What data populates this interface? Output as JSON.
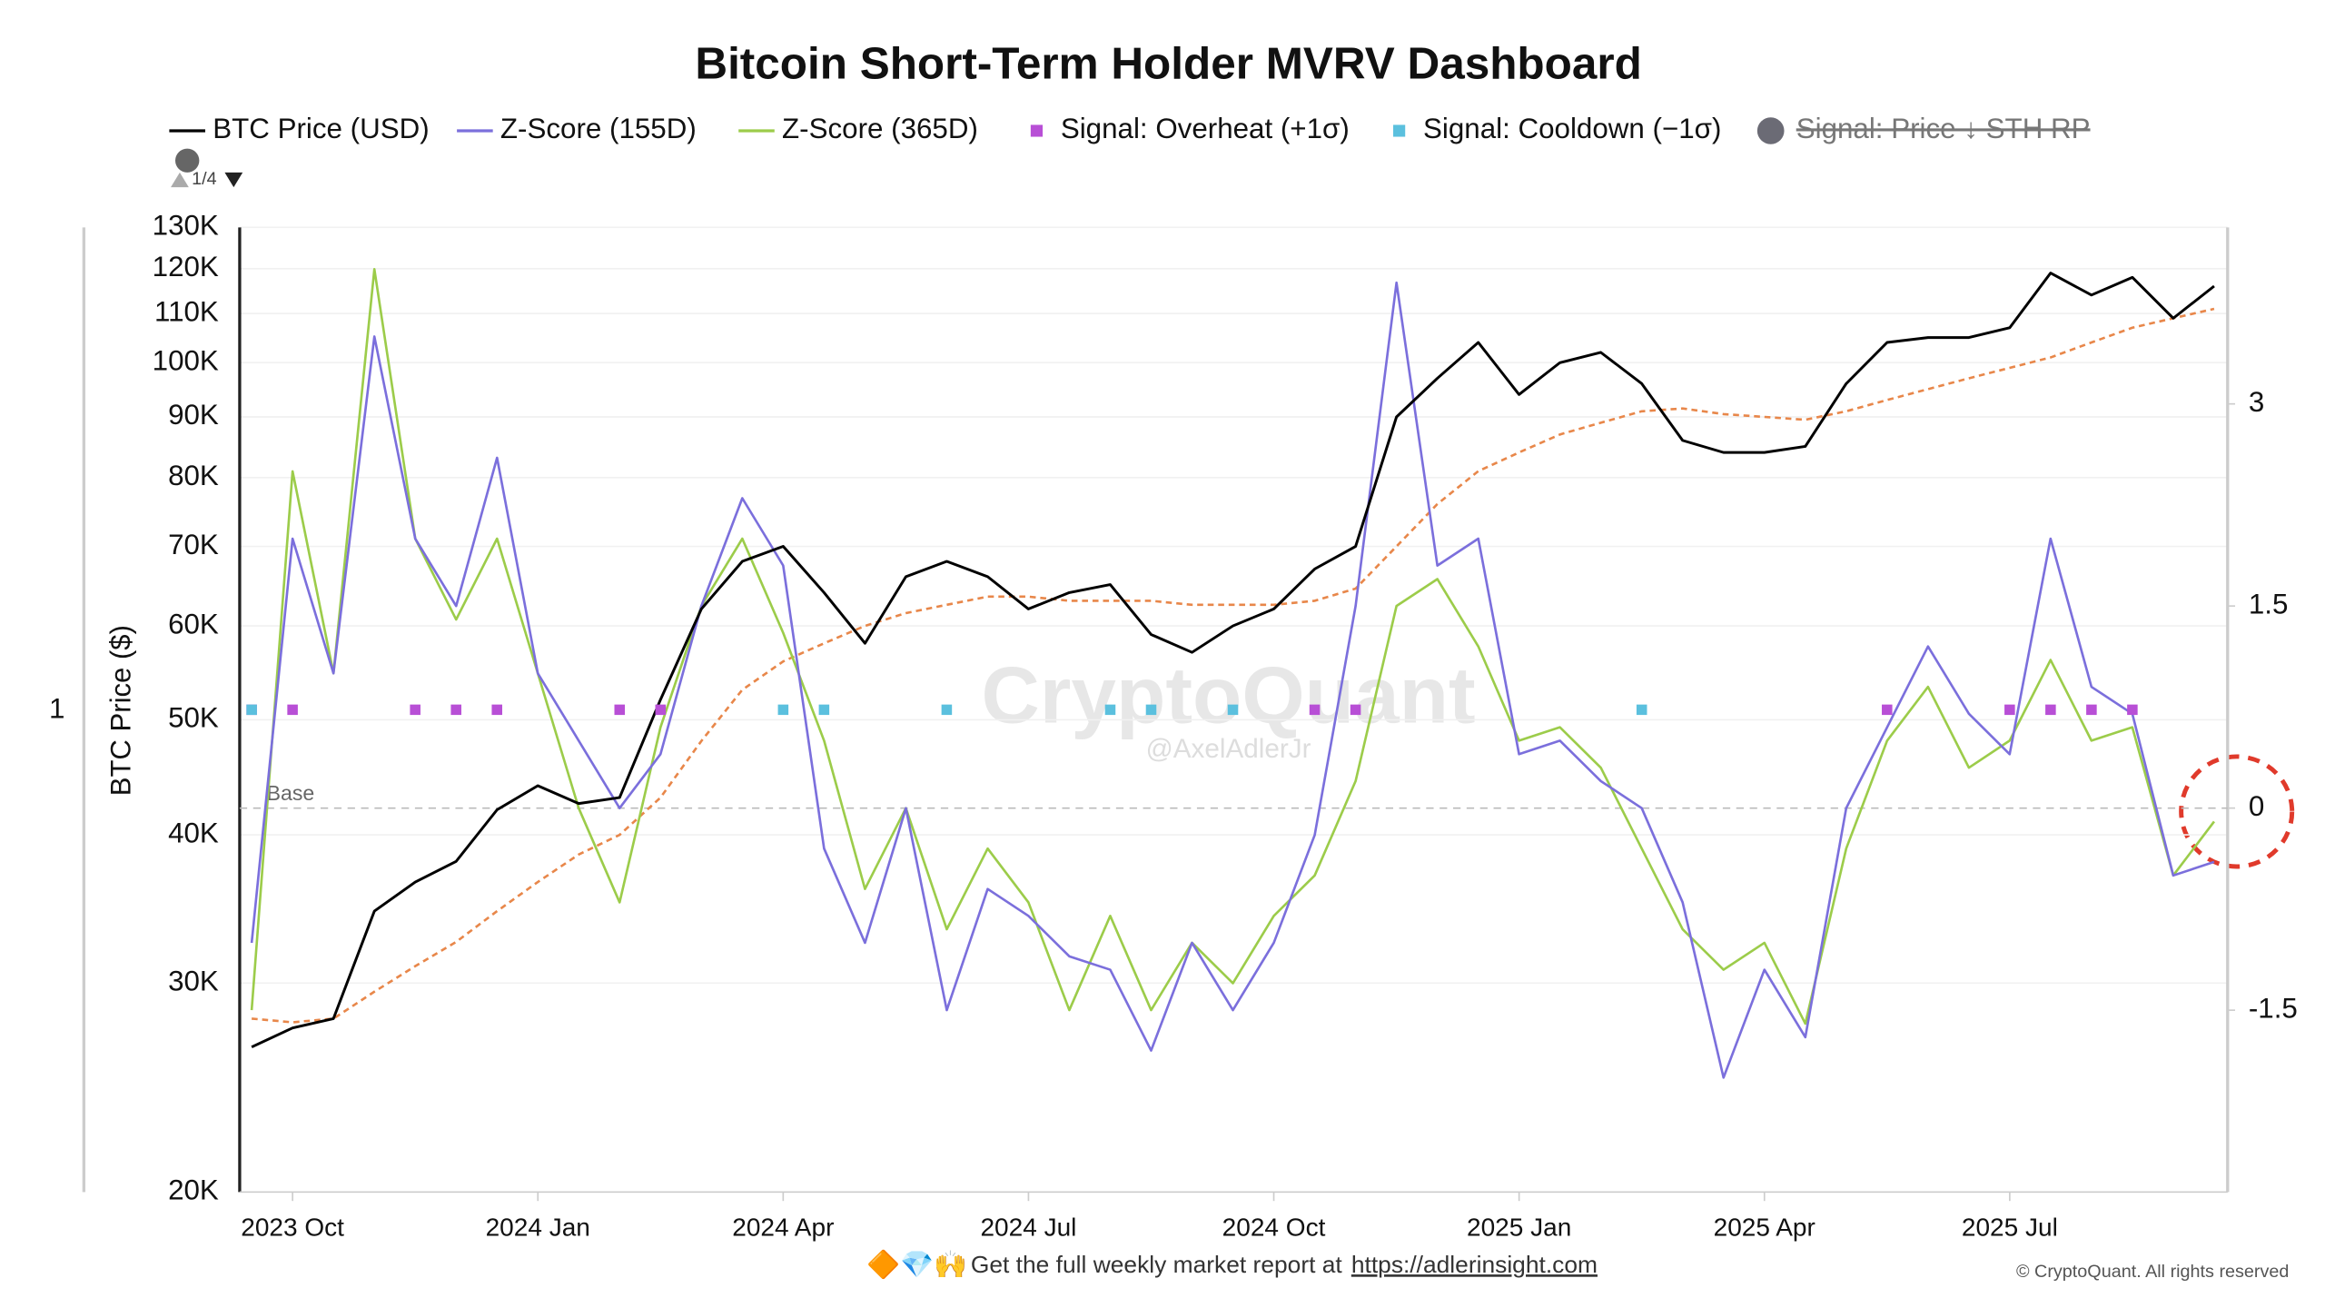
{
  "chart_data": {
    "type": "line",
    "title": "Bitcoin Short-Term Holder MVRV Dashboard",
    "y_label": "BTC Price ($)",
    "left_label": "1",
    "page_indicator": "1/4",
    "categories": [
      null,
      "2023 Oct",
      null,
      null,
      null,
      null,
      null,
      "2024 Jan",
      null,
      null,
      null,
      null,
      null,
      "2024 Apr",
      null,
      null,
      null,
      null,
      null,
      "2024 Jul",
      null,
      null,
      null,
      null,
      null,
      "2024 Oct",
      null,
      null,
      null,
      null,
      null,
      "2025 Jan",
      null,
      null,
      null,
      null,
      null,
      "2025 Apr",
      null,
      null,
      null,
      null,
      null,
      "2025 Jul",
      null,
      null,
      null,
      null,
      null
    ],
    "log_scale": true,
    "grid": true,
    "ylim": [
      20000,
      130000
    ],
    "yticks": [
      {
        "value": 20000,
        "label": "20K"
      },
      {
        "value": 30000,
        "label": "30K"
      },
      {
        "value": 40000,
        "label": "40K"
      },
      {
        "value": 50000,
        "label": "50K"
      },
      {
        "value": 60000,
        "label": "60K"
      },
      {
        "value": 70000,
        "label": "70K"
      },
      {
        "value": 80000,
        "label": "80K"
      },
      {
        "value": 90000,
        "label": "90K"
      },
      {
        "value": 100000,
        "label": "100K"
      },
      {
        "value": 110000,
        "label": "110K"
      },
      {
        "value": 120000,
        "label": "120K"
      },
      {
        "value": 130000,
        "label": "130K"
      }
    ],
    "y2lim": [
      -2.85,
      4.31
    ],
    "y2ticks": [
      -1.5,
      0,
      1.5,
      3
    ],
    "base_line": {
      "label": "Base",
      "value": 0
    },
    "series": [
      {
        "name": "BTC Price (USD)",
        "color": "#000000",
        "values": [
          26500,
          27500,
          28000,
          34500,
          36500,
          38000,
          42000,
          44000,
          42500,
          43000,
          52000,
          62000,
          68000,
          70000,
          64000,
          58000,
          66000,
          68000,
          66000,
          62000,
          64000,
          65000,
          59000,
          57000,
          60000,
          62000,
          67000,
          70000,
          90000,
          97000,
          104000,
          94000,
          100000,
          102000,
          96000,
          86000,
          84000,
          84000,
          85000,
          96000,
          104000,
          105000,
          105000,
          107000,
          119000,
          114000,
          118000,
          109000,
          116000
        ]
      },
      {
        "name": "Z-Score (155D)",
        "color": "#7b6fdc",
        "axis": "y2",
        "values": [
          -1.0,
          2.0,
          1.0,
          3.5,
          2.0,
          1.5,
          2.6,
          1.0,
          0.5,
          0.0,
          0.4,
          1.5,
          2.3,
          1.8,
          -0.3,
          -1.0,
          0.0,
          -1.5,
          -0.6,
          -0.8,
          -1.1,
          -1.2,
          -1.8,
          -1.0,
          -1.5,
          -1.0,
          -0.2,
          1.5,
          3.9,
          1.8,
          2.0,
          0.4,
          0.5,
          0.2,
          0.0,
          -0.7,
          -2.0,
          -1.2,
          -1.7,
          0.0,
          0.6,
          1.2,
          0.7,
          0.4,
          2.0,
          0.9,
          0.7,
          -0.5,
          -0.4
        ]
      },
      {
        "name": "Z-Score (365D)",
        "color": "#9ccc4a",
        "axis": "y2",
        "values": [
          -1.5,
          2.5,
          1.0,
          4.0,
          2.0,
          1.4,
          2.0,
          1.0,
          0.0,
          -0.7,
          0.6,
          1.5,
          2.0,
          1.3,
          0.5,
          -0.6,
          0.0,
          -0.9,
          -0.3,
          -0.7,
          -1.5,
          -0.8,
          -1.5,
          -1.0,
          -1.3,
          -0.8,
          -0.5,
          0.2,
          1.5,
          1.7,
          1.2,
          0.5,
          0.6,
          0.3,
          -0.3,
          -0.9,
          -1.2,
          -1.0,
          -1.6,
          -0.3,
          0.5,
          0.9,
          0.3,
          0.5,
          1.1,
          0.5,
          0.6,
          -0.5,
          -0.1
        ]
      },
      {
        "name": "Signal: Overheat (+1σ)",
        "color": "#b84fd6",
        "axis": "y2",
        "marker": "square",
        "values": [
          0.73,
          0.73,
          null,
          null,
          0.73,
          0.73,
          0.73,
          null,
          null,
          0.73,
          0.73,
          null,
          null,
          null,
          null,
          null,
          null,
          null,
          null,
          null,
          null,
          null,
          null,
          null,
          null,
          null,
          0.73,
          0.73,
          null,
          null,
          null,
          null,
          null,
          null,
          null,
          null,
          null,
          null,
          null,
          null,
          0.73,
          null,
          null,
          0.73,
          0.73,
          0.73,
          0.73,
          null,
          null
        ]
      },
      {
        "name": "Signal: Cooldown (−1σ)",
        "color": "#5bc0de",
        "axis": "y2",
        "marker": "square",
        "values": [
          0.73,
          null,
          null,
          null,
          null,
          null,
          null,
          null,
          null,
          null,
          null,
          null,
          null,
          0.73,
          0.73,
          null,
          null,
          0.73,
          null,
          null,
          null,
          0.73,
          0.73,
          null,
          0.73,
          null,
          null,
          null,
          null,
          null,
          null,
          null,
          null,
          null,
          0.73,
          null,
          null,
          null,
          null,
          null,
          null,
          null,
          null,
          null,
          null,
          null,
          null,
          null,
          null
        ]
      }
    ],
    "sth_rp": {
      "color": "#e8874a",
      "dashed": true,
      "values": [
        28000,
        27800,
        28000,
        29500,
        31000,
        32500,
        34500,
        36500,
        38500,
        40000,
        43000,
        48000,
        53000,
        56000,
        58000,
        60000,
        61500,
        62500,
        63500,
        63500,
        63000,
        63000,
        63000,
        62500,
        62500,
        62500,
        63000,
        64500,
        70000,
        76000,
        81000,
        84000,
        87000,
        89000,
        91000,
        91500,
        90500,
        90000,
        89500,
        91000,
        93000,
        95000,
        97000,
        99000,
        101000,
        104000,
        107000,
        109000,
        111000
      ]
    },
    "hidden_legend": [
      {
        "name": "Signal: Price ↓ STH RP",
        "color": "#6b6b75"
      }
    ],
    "watermark": "CryptoQuant",
    "watermark_handle": "@AxelAdlerJr",
    "footer": {
      "emoji": "🔶💎🙌",
      "text": "Get the full weekly market report at",
      "link": "https://adlerinsight.com",
      "copyright": "© CryptoQuant. All rights reserved"
    }
  }
}
